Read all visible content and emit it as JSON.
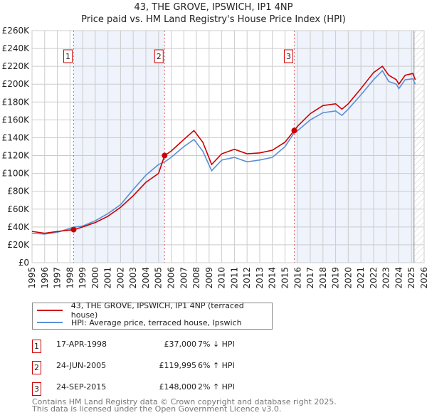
{
  "chart_data": {
    "type": "line",
    "title": "43, THE GROVE, IPSWICH, IP1 4NP",
    "subtitle": "Price paid vs. HM Land Registry's House Price Index (HPI)",
    "xlim": [
      1995,
      2026
    ],
    "ylim": [
      0,
      260000
    ],
    "x_ticks": [
      "1995",
      "1996",
      "1997",
      "1998",
      "1999",
      "2000",
      "2001",
      "2002",
      "2003",
      "2004",
      "2005",
      "2006",
      "2007",
      "2008",
      "2009",
      "2010",
      "2011",
      "2012",
      "2013",
      "2014",
      "2015",
      "2016",
      "2017",
      "2018",
      "2019",
      "2020",
      "2021",
      "2022",
      "2023",
      "2024",
      "2025",
      "2026"
    ],
    "y_ticks": [
      "£0",
      "£20K",
      "£40K",
      "£60K",
      "£80K",
      "£100K",
      "£120K",
      "£140K",
      "£160K",
      "£180K",
      "£200K",
      "£220K",
      "£240K",
      "£260K"
    ],
    "grid": true,
    "series": [
      {
        "name": "43, THE GROVE, IPSWICH, IP1 4NP (terraced house)",
        "color": "#cc0000",
        "points": [
          [
            1995,
            35000
          ],
          [
            1996,
            33000
          ],
          [
            1997,
            35000
          ],
          [
            1998.3,
            37000
          ],
          [
            1999,
            40000
          ],
          [
            2000,
            45000
          ],
          [
            2001,
            52000
          ],
          [
            2002,
            62000
          ],
          [
            2003,
            75000
          ],
          [
            2004,
            90000
          ],
          [
            2005,
            100000
          ],
          [
            2005.48,
            119995
          ],
          [
            2006,
            125000
          ],
          [
            2007,
            138000
          ],
          [
            2007.8,
            148000
          ],
          [
            2008.5,
            135000
          ],
          [
            2009.2,
            110000
          ],
          [
            2010,
            122000
          ],
          [
            2011,
            127000
          ],
          [
            2012,
            122000
          ],
          [
            2013,
            123000
          ],
          [
            2014,
            126000
          ],
          [
            2015,
            135000
          ],
          [
            2015.73,
            148000
          ],
          [
            2016,
            153000
          ],
          [
            2017,
            167000
          ],
          [
            2018,
            176000
          ],
          [
            2019,
            178000
          ],
          [
            2019.5,
            172000
          ],
          [
            2020,
            178000
          ],
          [
            2021,
            195000
          ],
          [
            2022,
            213000
          ],
          [
            2022.7,
            220000
          ],
          [
            2023.2,
            210000
          ],
          [
            2023.8,
            205000
          ],
          [
            2024,
            200000
          ],
          [
            2024.5,
            210000
          ],
          [
            2025.1,
            212000
          ],
          [
            2025.3,
            205000
          ]
        ]
      },
      {
        "name": "HPI: Average price, terraced house, Ipswich",
        "color": "#5b8fd6",
        "points": [
          [
            1995,
            33000
          ],
          [
            1996,
            32000
          ],
          [
            1997,
            34000
          ],
          [
            1998.3,
            39800
          ],
          [
            1999,
            41000
          ],
          [
            2000,
            47000
          ],
          [
            2001,
            55000
          ],
          [
            2002,
            65000
          ],
          [
            2003,
            82000
          ],
          [
            2004,
            98000
          ],
          [
            2005,
            110000
          ],
          [
            2005.5,
            113000
          ],
          [
            2006,
            118000
          ],
          [
            2007,
            130000
          ],
          [
            2007.8,
            138000
          ],
          [
            2008.5,
            125000
          ],
          [
            2009.2,
            103000
          ],
          [
            2010,
            115000
          ],
          [
            2011,
            118000
          ],
          [
            2012,
            113000
          ],
          [
            2013,
            115000
          ],
          [
            2014,
            118000
          ],
          [
            2015,
            130000
          ],
          [
            2015.7,
            145000
          ],
          [
            2016,
            148000
          ],
          [
            2017,
            160000
          ],
          [
            2018,
            168000
          ],
          [
            2019,
            170000
          ],
          [
            2019.5,
            165000
          ],
          [
            2020,
            172000
          ],
          [
            2021,
            188000
          ],
          [
            2022,
            205000
          ],
          [
            2022.7,
            215000
          ],
          [
            2023.2,
            203000
          ],
          [
            2023.8,
            200000
          ],
          [
            2024,
            195000
          ],
          [
            2024.5,
            205000
          ],
          [
            2025.1,
            206000
          ],
          [
            2025.3,
            200000
          ]
        ]
      }
    ],
    "sales": [
      {
        "label": "1",
        "x": 1998.29,
        "price": 37000
      },
      {
        "label": "2",
        "x": 2005.48,
        "price": 119995
      },
      {
        "label": "3",
        "x": 2015.73,
        "price": 148000
      }
    ],
    "hatched_from": 2025.2
  },
  "legend": {
    "red": "43, THE GROVE, IPSWICH, IP1 4NP (terraced house)",
    "blue": "HPI: Average price, terraced house, Ipswich"
  },
  "transactions": [
    {
      "num": "1",
      "date": "17-APR-1998",
      "price": "£37,000",
      "hpi": "7% ↓ HPI"
    },
    {
      "num": "2",
      "date": "24-JUN-2005",
      "price": "£119,995",
      "hpi": "6% ↑ HPI"
    },
    {
      "num": "3",
      "date": "24-SEP-2015",
      "price": "£148,000",
      "hpi": "2% ↑ HPI"
    }
  ],
  "footer": {
    "line1": "Contains HM Land Registry data © Crown copyright and database right 2025.",
    "line2": "This data is licensed under the Open Government Licence v3.0."
  }
}
